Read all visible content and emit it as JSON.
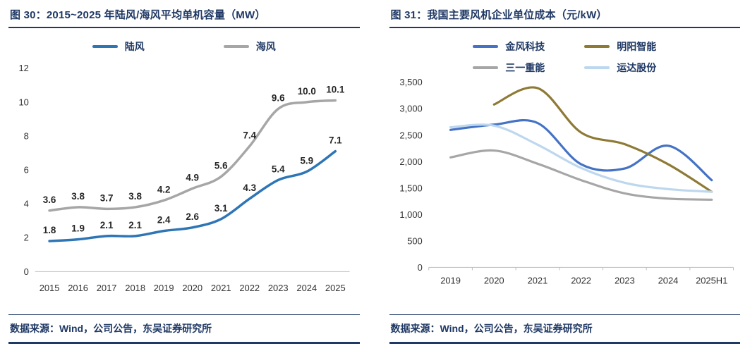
{
  "figures": [
    {
      "title": "图 30：2015~2025 年陆风/海风平均单机容量（MW）",
      "source": "数据来源：Wind，公司公告，东吴证券研究所"
    },
    {
      "title": "图 31：我国主要风机企业单位成本（元/kW）",
      "source": "数据来源：Wind，公司公告，东吴证券研究所"
    }
  ],
  "colors": {
    "accent": "#1f3864",
    "axis_text": "#333333",
    "axis_line": "#bfbfbf",
    "land_wind_blue": "#2e75b6",
    "sea_wind_gray": "#a6a6a6",
    "goldwind_blue": "#4472c4",
    "mingyang_olive": "#8e7a35",
    "sany_gray": "#a6a6a6",
    "yunda_lightblue": "#bdd7ee"
  },
  "chart_data": [
    {
      "type": "line",
      "title": "图 30：2015~2025 年陆风/海风平均单机容量（MW）",
      "categories": [
        "2015",
        "2016",
        "2017",
        "2018",
        "2019",
        "2020",
        "2021",
        "2022",
        "2023",
        "2024",
        "2025"
      ],
      "series": [
        {
          "name": "陆风",
          "color": "#2e75b6",
          "values": [
            1.8,
            1.9,
            2.1,
            2.1,
            2.4,
            2.6,
            3.1,
            4.3,
            5.4,
            5.9,
            7.1
          ]
        },
        {
          "name": "海风",
          "color": "#a6a6a6",
          "values": [
            3.6,
            3.8,
            3.7,
            3.8,
            4.2,
            4.9,
            5.6,
            7.4,
            9.6,
            10.0,
            10.1
          ]
        }
      ],
      "ylim": [
        0,
        12
      ],
      "ytick_step": 2,
      "data_labels": true,
      "decimals": 1,
      "grid": false,
      "legend_position": "top"
    },
    {
      "type": "line",
      "title": "图 31：我国主要风机企业单位成本（元/kW）",
      "categories": [
        "2019",
        "2020",
        "2021",
        "2022",
        "2023",
        "2024",
        "2025H1"
      ],
      "series": [
        {
          "name": "金风科技",
          "color": "#4472c4",
          "values": [
            2600,
            2700,
            2730,
            1950,
            1870,
            2300,
            1650
          ]
        },
        {
          "name": "明阳智能",
          "color": "#8e7a35",
          "values": [
            null,
            3080,
            3390,
            2550,
            2330,
            1950,
            1430
          ]
        },
        {
          "name": "三一重能",
          "color": "#a6a6a6",
          "values": [
            2080,
            2210,
            1960,
            1650,
            1400,
            1300,
            1280
          ]
        },
        {
          "name": "运达股份",
          "color": "#bdd7ee",
          "values": [
            2650,
            2680,
            2320,
            1880,
            1600,
            1480,
            1430
          ]
        }
      ],
      "ylim": [
        0,
        3500
      ],
      "ytick_step": 500,
      "data_labels": false,
      "grid": false,
      "legend_position": "top"
    }
  ]
}
